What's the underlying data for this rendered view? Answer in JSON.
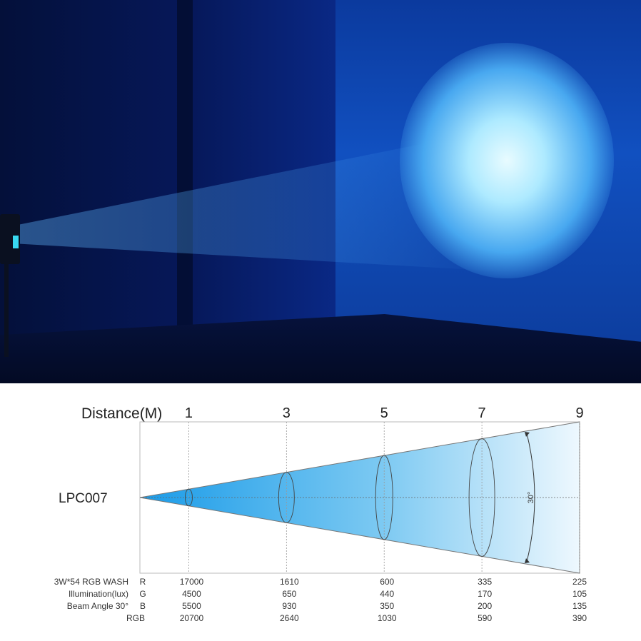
{
  "diagram": {
    "distance_label": "Distance(M)",
    "model": "LPC007",
    "angle_label": "30°",
    "distances": [
      "1",
      "3",
      "5",
      "7",
      "9"
    ],
    "beam_color": "#1a9be8",
    "table": {
      "title_lines": [
        "3W*54 RGB WASH",
        "Illumination(lux)",
        "Beam Angle 30°"
      ],
      "rows": [
        {
          "channel": "R",
          "values": [
            "17000",
            "1610",
            "600",
            "335",
            "225"
          ]
        },
        {
          "channel": "G",
          "values": [
            "4500",
            "650",
            "440",
            "170",
            "105"
          ]
        },
        {
          "channel": "B",
          "values": [
            "5500",
            "930",
            "350",
            "200",
            "135"
          ]
        },
        {
          "channel": "RGB",
          "values": [
            "20700",
            "2640",
            "1030",
            "590",
            "390"
          ]
        }
      ]
    }
  }
}
